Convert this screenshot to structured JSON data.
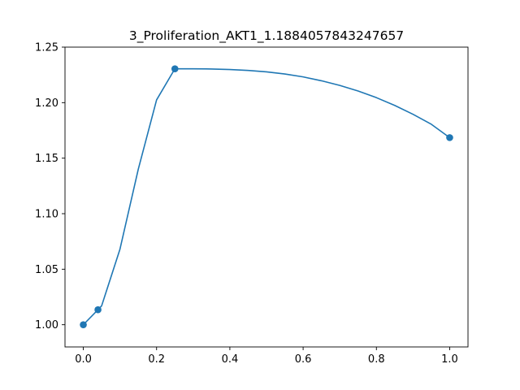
{
  "chart_data": {
    "type": "line",
    "title": "3_Proliferation_AKT1_1.1884057843247657",
    "xlabel": "",
    "ylabel": "",
    "xlim": [
      -0.05,
      1.05
    ],
    "ylim": [
      0.98,
      1.25
    ],
    "xticks": [
      0.0,
      0.2,
      0.4,
      0.6,
      0.8,
      1.0
    ],
    "xtick_labels": [
      "0.0",
      "0.2",
      "0.4",
      "0.6",
      "0.8",
      "1.0"
    ],
    "yticks": [
      1.0,
      1.05,
      1.1,
      1.15,
      1.2,
      1.25
    ],
    "ytick_labels": [
      "1.00",
      "1.05",
      "1.10",
      "1.15",
      "1.20",
      "1.25"
    ],
    "grid": false,
    "color": "#1f77b4",
    "series": [
      {
        "x": [
          0.0,
          0.04,
          0.05,
          0.1,
          0.15,
          0.2,
          0.25,
          0.3,
          0.35,
          0.4,
          0.45,
          0.5,
          0.55,
          0.6,
          0.65,
          0.7,
          0.75,
          0.8,
          0.85,
          0.9,
          0.95,
          1.0
        ],
        "y": [
          1.0,
          1.0135,
          1.017,
          1.068,
          1.14,
          1.2025,
          1.2305,
          1.2305,
          1.2303,
          1.2298,
          1.229,
          1.2277,
          1.2258,
          1.2232,
          1.2197,
          1.2155,
          1.2105,
          1.2045,
          1.1975,
          1.1895,
          1.1805,
          1.1685
        ]
      }
    ],
    "markers": {
      "x": [
        0.0,
        0.04,
        0.25,
        1.0
      ],
      "y": [
        1.0,
        1.0135,
        1.2305,
        1.1685
      ]
    }
  }
}
